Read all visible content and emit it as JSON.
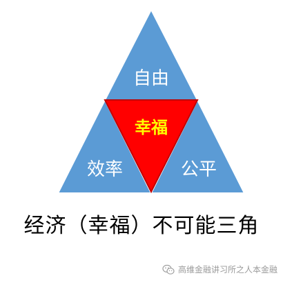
{
  "diagram": {
    "top_label": "自由",
    "center_label": "幸福",
    "left_label": "效率",
    "right_label": "公平",
    "colors": {
      "outer": "#5b9bd5",
      "outer_stroke": "#ffffff",
      "center": "#ff0000",
      "center_stroke": "#c00000",
      "center_text": "#ffff00",
      "outer_text": "#ffffff"
    }
  },
  "caption": "经济（幸福）不可能三角",
  "watermark": {
    "icon": "wechat-icon",
    "text": "高维金融讲习所之人本金融"
  }
}
